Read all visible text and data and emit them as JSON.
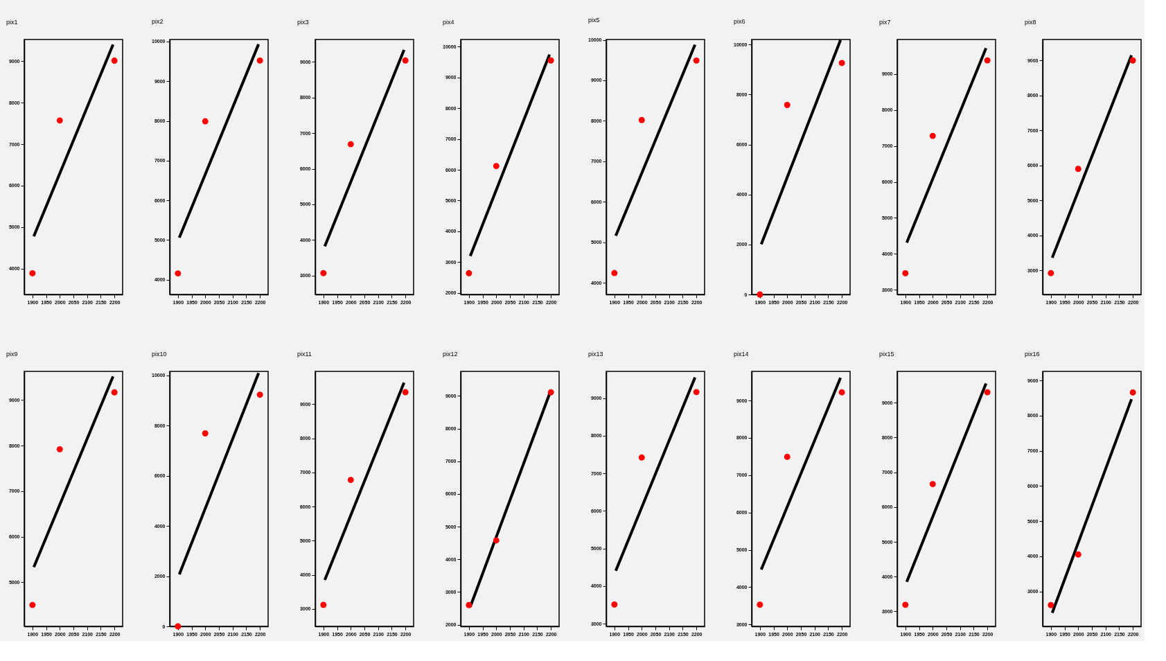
{
  "chart_data": [
    {
      "type": "scatter",
      "title": "pix1",
      "xlim": [
        1870,
        2230
      ],
      "xticks": [
        1900,
        1950,
        2000,
        2050,
        2100,
        2150,
        2200
      ],
      "ylim": [
        3380,
        9520
      ],
      "yticks": [
        4000,
        5000,
        6000,
        7000,
        8000,
        9000
      ],
      "series": [
        {
          "type": "line",
          "color": "#000000",
          "line_style": "solid",
          "x": [
            1905,
            2195
          ],
          "values": [
            4780,
            9400
          ]
        },
        {
          "type": "scatter",
          "color": "#ff0000",
          "marker": "circle",
          "x": [
            1900,
            2000,
            2200
          ],
          "values": [
            3890,
            7570,
            9010
          ]
        }
      ]
    },
    {
      "type": "scatter",
      "title": "pix2",
      "xlim": [
        1870,
        2230
      ],
      "xticks": [
        1900,
        1950,
        2000,
        2050,
        2100,
        2150,
        2200
      ],
      "ylim": [
        3630,
        10050
      ],
      "yticks": [
        4000,
        5000,
        6000,
        7000,
        8000,
        9000,
        10000
      ],
      "series": [
        {
          "type": "line",
          "color": "#000000",
          "line_style": "solid",
          "x": [
            1905,
            2195
          ],
          "values": [
            5060,
            9930
          ]
        },
        {
          "type": "scatter",
          "color": "#ff0000",
          "marker": "circle",
          "x": [
            1900,
            2000,
            2200
          ],
          "values": [
            4160,
            7990,
            9520
          ]
        }
      ]
    },
    {
      "type": "scatter",
      "title": "pix3",
      "xlim": [
        1870,
        2230
      ],
      "xticks": [
        1900,
        1950,
        2000,
        2050,
        2100,
        2150,
        2200
      ],
      "ylim": [
        2470,
        9630
      ],
      "yticks": [
        3000,
        4000,
        5000,
        6000,
        7000,
        8000,
        9000
      ],
      "series": [
        {
          "type": "line",
          "color": "#000000",
          "line_style": "solid",
          "x": [
            1905,
            2195
          ],
          "values": [
            3820,
            9340
          ]
        },
        {
          "type": "scatter",
          "color": "#ff0000",
          "marker": "circle",
          "x": [
            1900,
            2000,
            2200
          ],
          "values": [
            3070,
            6690,
            9040
          ]
        }
      ]
    },
    {
      "type": "scatter",
      "title": "pix4",
      "xlim": [
        1870,
        2230
      ],
      "xticks": [
        1900,
        1950,
        2000,
        2050,
        2100,
        2150,
        2200
      ],
      "ylim": [
        1950,
        10230
      ],
      "yticks": [
        2000,
        3000,
        4000,
        5000,
        6000,
        7000,
        8000,
        9000,
        10000
      ],
      "series": [
        {
          "type": "line",
          "color": "#000000",
          "line_style": "solid",
          "x": [
            1905,
            2195
          ],
          "values": [
            3200,
            9740
          ]
        },
        {
          "type": "scatter",
          "color": "#ff0000",
          "marker": "circle",
          "x": [
            1900,
            2000,
            2200
          ],
          "values": [
            2640,
            6120,
            9550
          ]
        }
      ]
    },
    {
      "type": "scatter",
      "title": "pix5",
      "xlim": [
        1870,
        2230
      ],
      "xticks": [
        1900,
        1950,
        2000,
        2050,
        2100,
        2150,
        2200
      ],
      "ylim": [
        3710,
        10010
      ],
      "yticks": [
        4000,
        5000,
        6000,
        7000,
        8000,
        9000,
        10000
      ],
      "series": [
        {
          "type": "line",
          "color": "#000000",
          "line_style": "solid",
          "x": [
            1905,
            2195
          ],
          "values": [
            5160,
            9880
          ]
        },
        {
          "type": "scatter",
          "color": "#ff0000",
          "marker": "circle",
          "x": [
            1900,
            2000,
            2200
          ],
          "values": [
            4240,
            8020,
            9490
          ]
        }
      ]
    },
    {
      "type": "scatter",
      "title": "pix6",
      "xlim": [
        1870,
        2230
      ],
      "xticks": [
        1900,
        1950,
        2000,
        2050,
        2100,
        2150,
        2200
      ],
      "ylim": [
        0,
        10200
      ],
      "yticks": [
        0,
        2000,
        4000,
        6000,
        8000,
        10000
      ],
      "series": [
        {
          "type": "line",
          "color": "#000000",
          "line_style": "solid",
          "x": [
            1905,
            2195
          ],
          "values": [
            2010,
            10180
          ]
        },
        {
          "type": "scatter",
          "color": "#ff0000",
          "marker": "circle",
          "x": [
            1900,
            2000,
            2200
          ],
          "values": [
            0,
            7580,
            9260
          ]
        }
      ]
    },
    {
      "type": "scatter",
      "title": "pix7",
      "xlim": [
        1870,
        2230
      ],
      "xticks": [
        1900,
        1950,
        2000,
        2050,
        2100,
        2150,
        2200
      ],
      "ylim": [
        2870,
        9960
      ],
      "yticks": [
        3000,
        4000,
        5000,
        6000,
        7000,
        8000,
        9000
      ],
      "series": [
        {
          "type": "line",
          "color": "#000000",
          "line_style": "solid",
          "x": [
            1905,
            2195
          ],
          "values": [
            4310,
            9720
          ]
        },
        {
          "type": "scatter",
          "color": "#ff0000",
          "marker": "circle",
          "x": [
            1900,
            2000,
            2200
          ],
          "values": [
            3460,
            7280,
            9380
          ]
        }
      ]
    },
    {
      "type": "scatter",
      "title": "pix8",
      "xlim": [
        1870,
        2230
      ],
      "xticks": [
        1900,
        1950,
        2000,
        2050,
        2100,
        2150,
        2200
      ],
      "ylim": [
        2310,
        9600
      ],
      "yticks": [
        3000,
        4000,
        5000,
        6000,
        7000,
        8000,
        9000
      ],
      "series": [
        {
          "type": "line",
          "color": "#000000",
          "line_style": "solid",
          "x": [
            1905,
            2195
          ],
          "values": [
            3360,
            9150
          ]
        },
        {
          "type": "scatter",
          "color": "#ff0000",
          "marker": "circle",
          "x": [
            1900,
            2000,
            2200
          ],
          "values": [
            2920,
            5900,
            9000
          ]
        }
      ]
    },
    {
      "type": "scatter",
      "title": "pix9",
      "xlim": [
        1870,
        2230
      ],
      "xticks": [
        1900,
        1950,
        2000,
        2050,
        2100,
        2150,
        2200
      ],
      "ylim": [
        4030,
        9630
      ],
      "yticks": [
        5000,
        6000,
        7000,
        8000,
        9000
      ],
      "series": [
        {
          "type": "line",
          "color": "#000000",
          "line_style": "solid",
          "x": [
            1905,
            2195
          ],
          "values": [
            5330,
            9520
          ]
        },
        {
          "type": "scatter",
          "color": "#ff0000",
          "marker": "circle",
          "x": [
            1900,
            2000,
            2200
          ],
          "values": [
            4500,
            7920,
            9170
          ]
        }
      ]
    },
    {
      "type": "scatter",
      "title": "pix10",
      "xlim": [
        1870,
        2230
      ],
      "xticks": [
        1900,
        1950,
        2000,
        2050,
        2100,
        2150,
        2200
      ],
      "ylim": [
        0,
        10160
      ],
      "yticks": [
        0,
        2000,
        4000,
        6000,
        8000,
        10000
      ],
      "series": [
        {
          "type": "line",
          "color": "#000000",
          "line_style": "solid",
          "x": [
            1905,
            2195
          ],
          "values": [
            2070,
            10090
          ]
        },
        {
          "type": "scatter",
          "color": "#ff0000",
          "marker": "circle",
          "x": [
            1900,
            2000,
            2200
          ],
          "values": [
            0,
            7690,
            9230
          ]
        }
      ]
    },
    {
      "type": "scatter",
      "title": "pix11",
      "xlim": [
        1870,
        2230
      ],
      "xticks": [
        1900,
        1950,
        2000,
        2050,
        2100,
        2150,
        2200
      ],
      "ylim": [
        2490,
        9960
      ],
      "yticks": [
        3000,
        4000,
        5000,
        6000,
        7000,
        8000,
        9000
      ],
      "series": [
        {
          "type": "line",
          "color": "#000000",
          "line_style": "solid",
          "x": [
            1905,
            2195
          ],
          "values": [
            3850,
            9630
          ]
        },
        {
          "type": "scatter",
          "color": "#ff0000",
          "marker": "circle",
          "x": [
            1900,
            2000,
            2200
          ],
          "values": [
            3120,
            6780,
            9350
          ]
        }
      ]
    },
    {
      "type": "scatter",
      "title": "pix12",
      "xlim": [
        1870,
        2230
      ],
      "xticks": [
        1900,
        1950,
        2000,
        2050,
        2100,
        2150,
        2200
      ],
      "ylim": [
        1950,
        9750
      ],
      "yticks": [
        2000,
        3000,
        4000,
        5000,
        6000,
        7000,
        8000,
        9000
      ],
      "series": [
        {
          "type": "line",
          "color": "#000000",
          "line_style": "solid",
          "x": [
            1905,
            2195
          ],
          "values": [
            2550,
            9060
          ]
        },
        {
          "type": "scatter",
          "color": "#ff0000",
          "marker": "circle",
          "x": [
            1900,
            2000,
            2200
          ],
          "values": [
            2600,
            4580,
            9110
          ]
        }
      ]
    },
    {
      "type": "scatter",
      "title": "pix13",
      "xlim": [
        1870,
        2230
      ],
      "xticks": [
        1900,
        1950,
        2000,
        2050,
        2100,
        2150,
        2200
      ],
      "ylim": [
        2930,
        9710
      ],
      "yticks": [
        3000,
        4000,
        5000,
        6000,
        7000,
        8000,
        9000
      ],
      "series": [
        {
          "type": "line",
          "color": "#000000",
          "line_style": "solid",
          "x": [
            1905,
            2195
          ],
          "values": [
            4410,
            9550
          ]
        },
        {
          "type": "scatter",
          "color": "#ff0000",
          "marker": "circle",
          "x": [
            1900,
            2000,
            2200
          ],
          "values": [
            3510,
            7420,
            9160
          ]
        }
      ]
    },
    {
      "type": "scatter",
      "title": "pix14",
      "xlim": [
        1870,
        2230
      ],
      "xticks": [
        1900,
        1950,
        2000,
        2050,
        2100,
        2150,
        2200
      ],
      "ylim": [
        2950,
        9780
      ],
      "yticks": [
        3000,
        4000,
        5000,
        6000,
        7000,
        8000,
        9000
      ],
      "series": [
        {
          "type": "line",
          "color": "#000000",
          "line_style": "solid",
          "x": [
            1905,
            2195
          ],
          "values": [
            4470,
            9610
          ]
        },
        {
          "type": "scatter",
          "color": "#ff0000",
          "marker": "circle",
          "x": [
            1900,
            2000,
            2200
          ],
          "values": [
            3530,
            7490,
            9220
          ]
        }
      ]
    },
    {
      "type": "scatter",
      "title": "pix15",
      "xlim": [
        1870,
        2230
      ],
      "xticks": [
        1900,
        1950,
        2000,
        2050,
        2100,
        2150,
        2200
      ],
      "ylim": [
        2570,
        9900
      ],
      "yticks": [
        3000,
        4000,
        5000,
        6000,
        7000,
        8000,
        9000
      ],
      "series": [
        {
          "type": "line",
          "color": "#000000",
          "line_style": "solid",
          "x": [
            1905,
            2195
          ],
          "values": [
            3850,
            9550
          ]
        },
        {
          "type": "scatter",
          "color": "#ff0000",
          "marker": "circle",
          "x": [
            1900,
            2000,
            2200
          ],
          "values": [
            3190,
            6660,
            9300
          ]
        }
      ]
    },
    {
      "type": "scatter",
      "title": "pix16",
      "xlim": [
        1870,
        2230
      ],
      "xticks": [
        1900,
        1950,
        2000,
        2050,
        2100,
        2150,
        2200
      ],
      "ylim": [
        2005,
        9260
      ],
      "yticks": [
        3000,
        4000,
        5000,
        6000,
        7000,
        8000,
        9000
      ],
      "series": [
        {
          "type": "line",
          "color": "#000000",
          "line_style": "solid",
          "x": [
            1905,
            2195
          ],
          "values": [
            2390,
            8470
          ]
        },
        {
          "type": "scatter",
          "color": "#ff0000",
          "marker": "circle",
          "x": [
            1900,
            2000,
            2200
          ],
          "values": [
            2610,
            4050,
            8660
          ]
        }
      ]
    }
  ]
}
